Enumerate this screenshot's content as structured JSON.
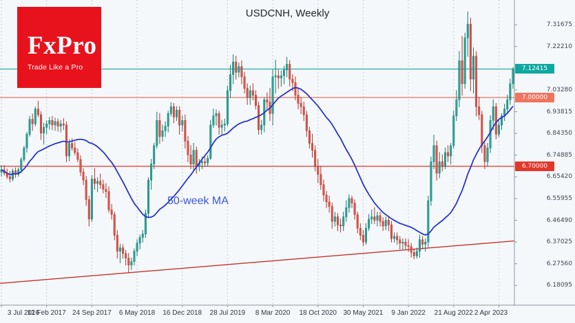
{
  "title": "USDCNH, Weekly",
  "logo": {
    "brand": "FxPro",
    "tagline": "Trade Like a Pro",
    "bg_color": "#e8121d"
  },
  "ma_label": {
    "text": "50-week MA",
    "color": "#3a56d8"
  },
  "colors": {
    "background": "#f5f8fb",
    "grid": "#c4cbd6",
    "axis_line": "#8a939e"
  },
  "axes": {
    "x_labels": [
      "3 Jul 2016",
      "12 Feb 2017",
      "24 Sep 2017",
      "6 May 2018",
      "16 Dec 2018",
      "28 Jul 2019",
      "8 Mar 2020",
      "18 Oct 2020",
      "30 May 2021",
      "9 Jan 2022",
      "21 Aug 2022",
      "2 Apr 2023"
    ],
    "x_tick_every": 16,
    "y_labels": [
      "7.31675",
      "7.22210",
      "7.03280",
      "6.93815",
      "6.84350",
      "6.74885",
      "6.65420",
      "6.55955",
      "6.46490",
      "6.37025",
      "6.27560",
      "6.18095"
    ]
  },
  "levels": [
    {
      "value": 7.12415,
      "label": "7.12415",
      "color": "#0fa8a0"
    },
    {
      "value": 7.0,
      "label": "7.00000",
      "color": "#ef7460"
    },
    {
      "value": 6.7,
      "label": "6.70000",
      "color": "#e2372b"
    }
  ],
  "trendline": {
    "start_price": 6.19,
    "end_price": 6.375,
    "color": "#c8302a"
  },
  "chart_data": {
    "type": "candlestick",
    "symbol": "USDCNH",
    "timeframe": "Weekly",
    "title": "USDCNH, Weekly",
    "x_range": [
      "3 Jul 2016",
      "Jun 2023"
    ],
    "ylim": [
      6.095,
      7.425
    ],
    "grid": "vertical-dashed-only",
    "up_color": "#2ba498",
    "up_border": "#117a6f",
    "down_color": "#e0544a",
    "down_border": "#b03228",
    "ma": {
      "type": "SMA",
      "period_weeks": 50,
      "period_candles": 25,
      "color": "#2633cc"
    },
    "candles": [
      [
        6.675,
        6.705,
        6.655,
        6.685
      ],
      [
        6.685,
        6.705,
        6.66,
        6.67
      ],
      [
        6.67,
        6.69,
        6.645,
        6.655
      ],
      [
        6.655,
        6.68,
        6.63,
        6.645
      ],
      [
        6.645,
        6.69,
        6.635,
        6.68
      ],
      [
        6.68,
        6.695,
        6.65,
        6.665
      ],
      [
        6.665,
        6.695,
        6.655,
        6.685
      ],
      [
        6.685,
        6.74,
        6.67,
        6.73
      ],
      [
        6.73,
        6.79,
        6.72,
        6.78
      ],
      [
        6.78,
        6.85,
        6.76,
        6.84
      ],
      [
        6.84,
        6.92,
        6.83,
        6.905
      ],
      [
        6.905,
        6.93,
        6.855,
        6.885
      ],
      [
        6.885,
        6.96,
        6.875,
        6.95
      ],
      [
        6.95,
        6.985,
        6.915,
        6.925
      ],
      [
        6.925,
        6.94,
        6.815,
        6.845
      ],
      [
        6.845,
        6.89,
        6.795,
        6.87
      ],
      [
        6.87,
        6.9,
        6.84,
        6.885
      ],
      [
        6.885,
        6.915,
        6.86,
        6.9
      ],
      [
        6.9,
        6.92,
        6.858,
        6.88
      ],
      [
        6.88,
        6.912,
        6.855,
        6.895
      ],
      [
        6.895,
        6.908,
        6.852,
        6.875
      ],
      [
        6.875,
        6.902,
        6.848,
        6.885
      ],
      [
        6.885,
        6.91,
        6.858,
        6.88
      ],
      [
        6.88,
        6.896,
        6.718,
        6.745
      ],
      [
        6.745,
        6.818,
        6.722,
        6.8
      ],
      [
        6.8,
        6.822,
        6.768,
        6.78
      ],
      [
        6.78,
        6.806,
        6.748,
        6.76
      ],
      [
        6.76,
        6.778,
        6.718,
        6.73
      ],
      [
        6.73,
        6.748,
        6.658,
        6.675
      ],
      [
        6.675,
        6.692,
        6.618,
        6.64
      ],
      [
        6.64,
        6.658,
        6.528,
        6.555
      ],
      [
        6.555,
        6.572,
        6.438,
        6.47
      ],
      [
        6.47,
        6.662,
        6.458,
        6.645
      ],
      [
        6.645,
        6.692,
        6.598,
        6.625
      ],
      [
        6.625,
        6.652,
        6.588,
        6.635
      ],
      [
        6.635,
        6.668,
        6.602,
        6.62
      ],
      [
        6.62,
        6.642,
        6.582,
        6.6
      ],
      [
        6.6,
        6.626,
        6.562,
        6.59
      ],
      [
        6.59,
        6.612,
        6.498,
        6.51
      ],
      [
        6.51,
        6.536,
        6.468,
        6.49
      ],
      [
        6.49,
        6.502,
        6.378,
        6.4
      ],
      [
        6.4,
        6.422,
        6.298,
        6.33
      ],
      [
        6.33,
        6.362,
        6.278,
        6.345
      ],
      [
        6.345,
        6.36,
        6.298,
        6.32
      ],
      [
        6.32,
        6.336,
        6.268,
        6.3
      ],
      [
        6.3,
        6.322,
        6.236,
        6.27
      ],
      [
        6.27,
        6.302,
        6.248,
        6.285
      ],
      [
        6.285,
        6.342,
        6.268,
        6.33
      ],
      [
        6.33,
        6.382,
        6.308,
        6.365
      ],
      [
        6.365,
        6.402,
        6.338,
        6.39
      ],
      [
        6.39,
        6.422,
        6.368,
        6.405
      ],
      [
        6.405,
        6.512,
        6.388,
        6.495
      ],
      [
        6.495,
        6.652,
        6.478,
        6.64
      ],
      [
        6.64,
        6.732,
        6.598,
        6.71
      ],
      [
        6.71,
        6.802,
        6.688,
        6.79
      ],
      [
        6.79,
        6.938,
        6.778,
        6.9
      ],
      [
        6.9,
        6.932,
        6.798,
        6.83
      ],
      [
        6.83,
        6.882,
        6.808,
        6.855
      ],
      [
        6.855,
        6.896,
        6.828,
        6.875
      ],
      [
        6.875,
        6.942,
        6.848,
        6.93
      ],
      [
        6.93,
        6.98,
        6.918,
        6.96
      ],
      [
        6.96,
        6.976,
        6.888,
        6.915
      ],
      [
        6.915,
        6.962,
        6.898,
        6.945
      ],
      [
        6.945,
        6.962,
        6.838,
        6.88
      ],
      [
        6.88,
        6.922,
        6.852,
        6.9
      ],
      [
        6.9,
        6.926,
        6.778,
        6.81
      ],
      [
        6.81,
        6.832,
        6.718,
        6.75
      ],
      [
        6.75,
        6.792,
        6.688,
        6.71
      ],
      [
        6.71,
        6.802,
        6.678,
        6.77
      ],
      [
        6.77,
        6.786,
        6.668,
        6.7
      ],
      [
        6.7,
        6.732,
        6.678,
        6.715
      ],
      [
        6.715,
        6.742,
        6.688,
        6.72
      ],
      [
        6.72,
        6.742,
        6.698,
        6.715
      ],
      [
        6.715,
        6.748,
        6.698,
        6.735
      ],
      [
        6.735,
        6.902,
        6.728,
        6.88
      ],
      [
        6.88,
        6.952,
        6.868,
        6.92
      ],
      [
        6.92,
        6.948,
        6.878,
        6.93
      ],
      [
        6.93,
        6.942,
        6.838,
        6.87
      ],
      [
        6.87,
        6.902,
        6.838,
        6.88
      ],
      [
        6.88,
        6.908,
        6.852,
        6.885
      ],
      [
        6.885,
        7.052,
        6.875,
        7.03
      ],
      [
        7.03,
        7.142,
        6.998,
        7.1
      ],
      [
        7.1,
        7.188,
        7.058,
        7.155
      ],
      [
        7.155,
        7.182,
        7.078,
        7.11
      ],
      [
        7.11,
        7.152,
        7.088,
        7.135
      ],
      [
        7.135,
        7.162,
        7.058,
        7.09
      ],
      [
        7.09,
        7.112,
        7.018,
        7.04
      ],
      [
        7.04,
        7.062,
        6.968,
        7.0
      ],
      [
        7.0,
        7.052,
        6.968,
        7.03
      ],
      [
        7.03,
        7.062,
        6.988,
        7.01
      ],
      [
        7.01,
        7.032,
        6.948,
        6.965
      ],
      [
        6.965,
        6.982,
        6.838,
        6.86
      ],
      [
        6.86,
        6.902,
        6.838,
        6.88
      ],
      [
        6.88,
        7.002,
        6.848,
        6.99
      ],
      [
        6.99,
        7.022,
        6.948,
        6.98
      ],
      [
        6.98,
        7.042,
        6.898,
        6.93
      ],
      [
        6.93,
        7.122,
        6.878,
        7.09
      ],
      [
        7.09,
        7.165,
        7.018,
        7.095
      ],
      [
        7.095,
        7.122,
        7.038,
        7.085
      ],
      [
        7.085,
        7.118,
        7.048,
        7.095
      ],
      [
        7.095,
        7.138,
        7.058,
        7.12
      ],
      [
        7.12,
        7.177,
        7.088,
        7.145
      ],
      [
        7.145,
        7.162,
        7.048,
        7.08
      ],
      [
        7.08,
        7.102,
        7.028,
        7.065
      ],
      [
        7.065,
        7.092,
        6.988,
        7.01
      ],
      [
        7.01,
        7.042,
        6.948,
        6.975
      ],
      [
        6.975,
        7.002,
        6.928,
        6.96
      ],
      [
        6.96,
        6.982,
        6.898,
        6.925
      ],
      [
        6.925,
        6.942,
        6.828,
        6.855
      ],
      [
        6.855,
        6.872,
        6.778,
        6.8
      ],
      [
        6.8,
        6.842,
        6.738,
        6.77
      ],
      [
        6.77,
        6.792,
        6.678,
        6.7
      ],
      [
        6.7,
        6.732,
        6.628,
        6.665
      ],
      [
        6.665,
        6.702,
        6.598,
        6.62
      ],
      [
        6.62,
        6.642,
        6.548,
        6.575
      ],
      [
        6.575,
        6.592,
        6.518,
        6.545
      ],
      [
        6.545,
        6.572,
        6.498,
        6.525
      ],
      [
        6.525,
        6.542,
        6.428,
        6.46
      ],
      [
        6.46,
        6.502,
        6.438,
        6.48
      ],
      [
        6.48,
        6.496,
        6.418,
        6.445
      ],
      [
        6.445,
        6.472,
        6.412,
        6.44
      ],
      [
        6.44,
        6.502,
        6.418,
        6.48
      ],
      [
        6.48,
        6.552,
        6.458,
        6.52
      ],
      [
        6.52,
        6.578,
        6.498,
        6.56
      ],
      [
        6.56,
        6.572,
        6.518,
        6.54
      ],
      [
        6.54,
        6.556,
        6.468,
        6.49
      ],
      [
        6.49,
        6.502,
        6.408,
        6.43
      ],
      [
        6.43,
        6.452,
        6.378,
        6.4
      ],
      [
        6.4,
        6.422,
        6.352,
        6.37
      ],
      [
        6.37,
        6.452,
        6.358,
        6.43
      ],
      [
        6.43,
        6.492,
        6.418,
        6.47
      ],
      [
        6.47,
        6.512,
        6.448,
        6.48
      ],
      [
        6.48,
        6.522,
        6.448,
        6.465
      ],
      [
        6.465,
        6.502,
        6.438,
        6.485
      ],
      [
        6.485,
        6.502,
        6.438,
        6.46
      ],
      [
        6.46,
        6.478,
        6.418,
        6.44
      ],
      [
        6.44,
        6.482,
        6.422,
        6.465
      ],
      [
        6.465,
        6.482,
        6.418,
        6.445
      ],
      [
        6.445,
        6.462,
        6.368,
        6.385
      ],
      [
        6.385,
        6.412,
        6.368,
        6.395
      ],
      [
        6.395,
        6.412,
        6.358,
        6.38
      ],
      [
        6.38,
        6.396,
        6.338,
        6.365
      ],
      [
        6.365,
        6.386,
        6.338,
        6.37
      ],
      [
        6.37,
        6.386,
        6.338,
        6.355
      ],
      [
        6.355,
        6.382,
        6.328,
        6.35
      ],
      [
        6.35,
        6.366,
        6.302,
        6.325
      ],
      [
        6.325,
        6.342,
        6.295,
        6.31
      ],
      [
        6.31,
        6.346,
        6.298,
        6.33
      ],
      [
        6.33,
        6.402,
        6.302,
        6.38
      ],
      [
        6.38,
        6.396,
        6.338,
        6.36
      ],
      [
        6.36,
        6.386,
        6.328,
        6.37
      ],
      [
        6.37,
        6.572,
        6.348,
        6.55
      ],
      [
        6.55,
        6.742,
        6.528,
        6.72
      ],
      [
        6.72,
        6.838,
        6.688,
        6.79
      ],
      [
        6.79,
        6.812,
        6.638,
        6.67
      ],
      [
        6.67,
        6.762,
        6.648,
        6.72
      ],
      [
        6.72,
        6.752,
        6.678,
        6.7
      ],
      [
        6.7,
        6.782,
        6.688,
        6.76
      ],
      [
        6.76,
        6.792,
        6.718,
        6.745
      ],
      [
        6.745,
        6.802,
        6.708,
        6.79
      ],
      [
        6.79,
        6.942,
        6.778,
        6.92
      ],
      [
        6.92,
        7.032,
        6.898,
        6.99
      ],
      [
        6.99,
        7.202,
        6.958,
        7.16
      ],
      [
        7.16,
        7.268,
        7.008,
        7.06
      ],
      [
        7.06,
        7.282,
        7.038,
        7.26
      ],
      [
        7.26,
        7.375,
        7.178,
        7.32
      ],
      [
        7.32,
        7.348,
        7.028,
        7.08
      ],
      [
        7.08,
        7.218,
        7.018,
        7.18
      ],
      [
        7.18,
        7.202,
        6.918,
        6.96
      ],
      [
        6.96,
        7.002,
        6.902,
        6.925
      ],
      [
        6.925,
        6.942,
        6.758,
        6.79
      ],
      [
        6.79,
        6.802,
        6.688,
        6.72
      ],
      [
        6.72,
        6.802,
        6.698,
        6.78
      ],
      [
        6.78,
        6.922,
        6.758,
        6.9
      ],
      [
        6.9,
        6.992,
        6.858,
        6.96
      ],
      [
        6.96,
        6.976,
        6.818,
        6.84
      ],
      [
        6.84,
        6.902,
        6.828,
        6.88
      ],
      [
        6.88,
        6.932,
        6.858,
        6.92
      ],
      [
        6.92,
        6.972,
        6.898,
        6.95
      ],
      [
        6.95,
        7.012,
        6.928,
        6.99
      ],
      [
        6.99,
        7.082,
        6.968,
        7.06
      ],
      [
        7.06,
        7.132,
        7.038,
        7.124
      ]
    ]
  }
}
